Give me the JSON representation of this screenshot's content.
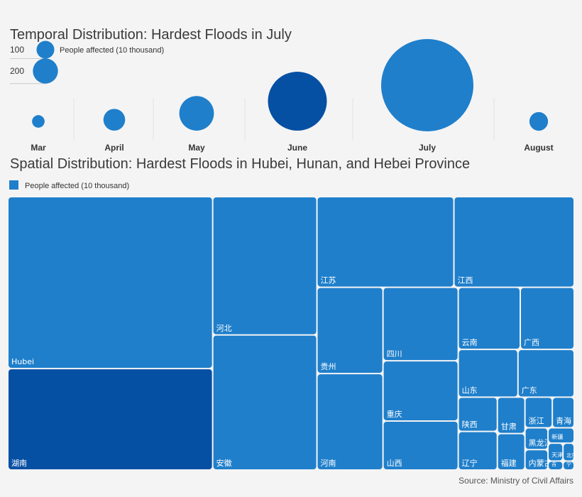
{
  "chart_data": [
    {
      "type": "bubble",
      "title": "Temporal Distribution: Hardest Floods in July",
      "size_legend": {
        "label": "People affected (10 thousand)",
        "values": [
          100,
          200
        ]
      },
      "categories": [
        "Mar",
        "April",
        "May",
        "June",
        "July",
        "August"
      ],
      "values": [
        50,
        150,
        380,
        1100,
        2700,
        110
      ],
      "colors": [
        "#1f7fcb",
        "#1f7fcb",
        "#1f7fcb",
        "#0650a4",
        "#1f7fcb",
        "#1f7fcb"
      ]
    },
    {
      "type": "treemap",
      "title": "Spatial Distribution: Hardest Floods in Hubei, Hunan, and Hebei Province",
      "legend": {
        "label": "People affected (10 thousand)",
        "color": "#1f7fcb"
      },
      "items": [
        {
          "name": "Hubei",
          "value": 1050
        },
        {
          "name": "湖南",
          "value": 620
        },
        {
          "name": "河北",
          "value": 430
        },
        {
          "name": "安徽",
          "value": 420
        },
        {
          "name": "江苏",
          "value": 370
        },
        {
          "name": "江西",
          "value": 325
        },
        {
          "name": "贵州",
          "value": 170
        },
        {
          "name": "河南",
          "value": 190
        },
        {
          "name": "四川",
          "value": 165
        },
        {
          "name": "重庆",
          "value": 135
        },
        {
          "name": "山西",
          "value": 110
        },
        {
          "name": "云南",
          "value": 115
        },
        {
          "name": "广西",
          "value": 100
        },
        {
          "name": "山东",
          "value": 85
        },
        {
          "name": "广东",
          "value": 80
        },
        {
          "name": "陕西",
          "value": 40
        },
        {
          "name": "辽宁",
          "value": 45
        },
        {
          "name": "甘肃",
          "value": 30
        },
        {
          "name": "福建",
          "value": 30
        },
        {
          "name": "浙江",
          "value": 25
        },
        {
          "name": "青海",
          "value": 20
        },
        {
          "name": "黑龙江",
          "value": 15
        },
        {
          "name": "内蒙古",
          "value": 14
        },
        {
          "name": "新疆",
          "value": 12
        },
        {
          "name": "天津",
          "value": 8
        },
        {
          "name": "北京",
          "value": 6
        },
        {
          "name": "吉",
          "value": 4
        },
        {
          "name": "宁",
          "value": 3
        }
      ],
      "highlight": "湖南",
      "highlight_color": "#0650a4"
    }
  ],
  "source": "Source: Ministry of Civil Affairs"
}
